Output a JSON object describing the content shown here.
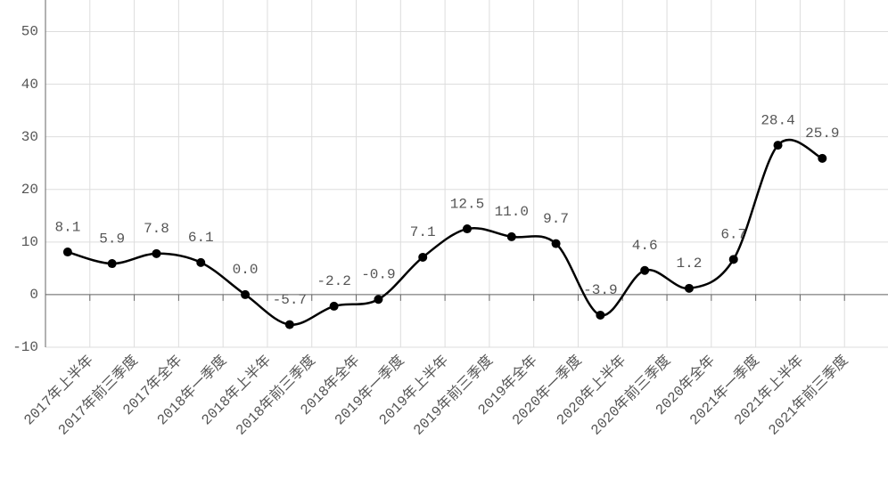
{
  "chart_data": {
    "type": "line",
    "categories": [
      "2017年上半年",
      "2017年前三季度",
      "2017年全年",
      "2018年一季度",
      "2018年上半年",
      "2018年前三季度",
      "2018年全年",
      "2019年一季度",
      "2019年上半年",
      "2019年前三季度",
      "2019年全年",
      "2020年一季度",
      "2020年上半年",
      "2020年前三季度",
      "2020年全年",
      "2021年一季度",
      "2021年上半年",
      "2021年前三季度"
    ],
    "series": [
      {
        "color": "#000000",
        "values": [
          8.1,
          5.9,
          7.8,
          6.1,
          0.0,
          -5.7,
          -2.2,
          -0.9,
          7.1,
          12.5,
          11.0,
          9.7,
          -3.9,
          4.6,
          1.2,
          6.7,
          28.4,
          25.9
        ],
        "value_labels": [
          "8.1",
          "5.9",
          "7.8",
          "6.1",
          "0.0",
          "-5.7",
          "-2.2",
          "-0.9",
          "7.1",
          "12.5",
          "11.0",
          "9.7",
          "-3.9",
          "4.6",
          "1.2",
          "6.7",
          "28.4",
          "25.9"
        ]
      }
    ],
    "ylim": [
      -10,
      56
    ],
    "yticks": [
      -10,
      0,
      10,
      20,
      30,
      40,
      50
    ],
    "grid": true,
    "smooth": true
  }
}
